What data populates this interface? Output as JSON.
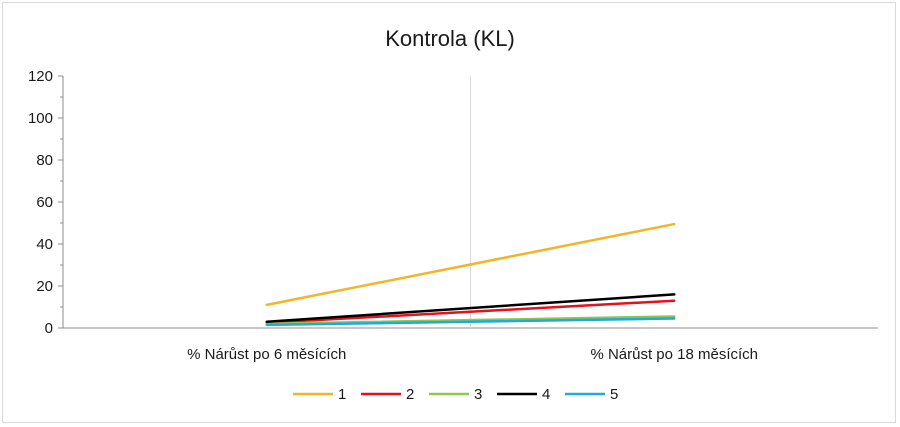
{
  "chart_data": {
    "type": "line",
    "title": "Kontrola (KL)",
    "categories": [
      "% Nárůst po 6 měsících",
      "% Nárůst po 18 měsících"
    ],
    "ylim": [
      0,
      120
    ],
    "yticks": [
      "0",
      "20",
      "40",
      "60",
      "80",
      "100",
      "120"
    ],
    "grid": false,
    "legend_position": "bottom",
    "series": [
      {
        "name": "1",
        "color": "#f5b32a",
        "values": [
          11,
          49.5
        ]
      },
      {
        "name": "2",
        "color": "#e8111b",
        "values": [
          2.5,
          13
        ]
      },
      {
        "name": "3",
        "color": "#8cc84b",
        "values": [
          2,
          5.5
        ]
      },
      {
        "name": "4",
        "color": "#000000",
        "values": [
          3,
          16
        ]
      },
      {
        "name": "5",
        "color": "#1ea9e0",
        "values": [
          1.5,
          4.5
        ]
      }
    ]
  }
}
